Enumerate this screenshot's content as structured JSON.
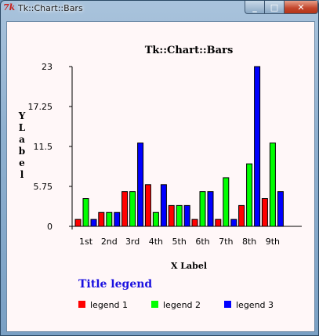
{
  "window": {
    "title": "Tk::Chart::Bars",
    "icon": "tk-feather-icon",
    "buttons": {
      "minimize": "_",
      "maximize": "□",
      "close": "✕"
    }
  },
  "chart_data": {
    "type": "bar",
    "title": "Tk::Chart::Bars",
    "xlabel": "X Label",
    "ylabel": "YLabel",
    "ylabel_chars": [
      "Y",
      "L",
      "a",
      "b",
      "e",
      "l"
    ],
    "categories": [
      "1st",
      "2nd",
      "3rd",
      "4th",
      "5th",
      "6th",
      "7th",
      "8th",
      "9th"
    ],
    "yticks": [
      "0",
      "5.75",
      "11.5",
      "17.25",
      "23"
    ],
    "ylim": [
      0,
      23
    ],
    "legend_title": "Title legend",
    "legend_position": "bottom",
    "series": [
      {
        "name": "legend 1",
        "color": "#ff0000",
        "values": [
          1,
          2,
          5,
          6,
          3,
          1,
          1,
          3,
          4
        ]
      },
      {
        "name": "legend 2",
        "color": "#00ff00",
        "values": [
          4,
          2,
          5,
          2,
          3,
          5,
          7,
          9,
          12
        ]
      },
      {
        "name": "legend 3",
        "color": "#0000ff",
        "values": [
          1,
          2,
          12,
          6,
          3,
          5,
          1,
          23,
          5
        ]
      }
    ]
  }
}
